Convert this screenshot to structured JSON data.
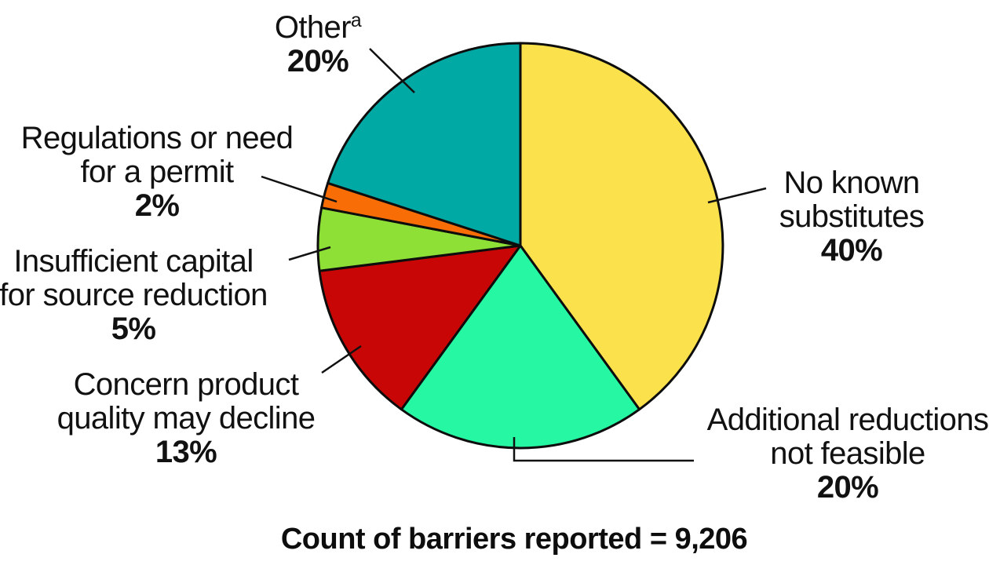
{
  "chart_data": {
    "type": "pie",
    "caption": "Count of barriers reported = 9,206",
    "total_label": "Count of barriers reported",
    "total_value": "9,206",
    "start_angle_deg": 0,
    "direction": "clockwise",
    "stroke_color": "#0d0d0d",
    "slices": [
      {
        "label": "No known substitutes",
        "pct": 40,
        "color": "#FBE14B"
      },
      {
        "label": "Additional reductions not feasible",
        "pct": 20,
        "color": "#26F7A3"
      },
      {
        "label": "Concern product quality may decline",
        "pct": 13,
        "color": "#C90606"
      },
      {
        "label": "Insufficient capital for source reduction",
        "pct": 5,
        "color": "#8EDF36"
      },
      {
        "label": "Regulations or need for a permit",
        "pct": 2,
        "color": "#F96D07"
      },
      {
        "label": "Other",
        "footnote": "a",
        "pct": 20,
        "color": "#00A9A4"
      }
    ]
  },
  "labels": {
    "other": {
      "line1": "Other",
      "sup": "a",
      "pct": "20%"
    },
    "regulations": {
      "line1": "Regulations or need",
      "line2": "for a permit",
      "pct": "2%"
    },
    "insufficient": {
      "line1": "Insufficient capital",
      "line2": "for source reduction",
      "pct": "5%"
    },
    "concern": {
      "line1": "Concern product",
      "line2": "quality may decline",
      "pct": "13%"
    },
    "no_known": {
      "line1": "No known",
      "line2": "substitutes",
      "pct": "40%"
    },
    "additional": {
      "line1": "Additional reductions",
      "line2": "not feasible",
      "pct": "20%"
    }
  },
  "caption": {
    "text": "Count of barriers reported = 9,206"
  }
}
